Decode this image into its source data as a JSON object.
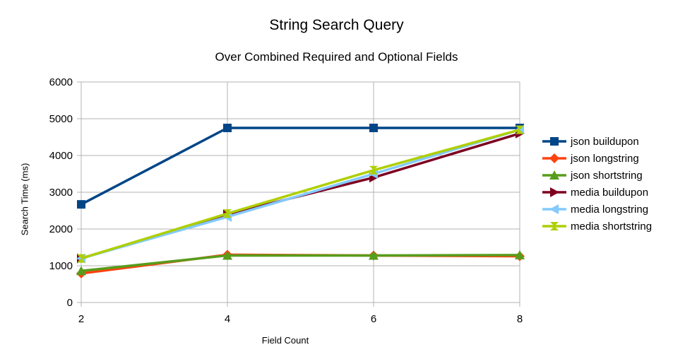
{
  "chart_data": {
    "type": "line",
    "title": "String Search Query",
    "subtitle": "Over Combined Required and Optional Fields",
    "xlabel": "Field Count",
    "ylabel": "Search Time (ms)",
    "x": [
      2,
      4,
      6,
      8
    ],
    "xlim": [
      2,
      8
    ],
    "ylim": [
      0,
      6000
    ],
    "yticks": [
      0,
      1000,
      2000,
      3000,
      4000,
      5000,
      6000
    ],
    "grid": true,
    "legend_position": "right",
    "series": [
      {
        "name": "json buildupon",
        "values": [
          2670,
          4750,
          4750,
          4750
        ],
        "color": "#004586",
        "marker": "square"
      },
      {
        "name": "json longstring",
        "values": [
          790,
          1300,
          1280,
          1260
        ],
        "color": "#ff420e",
        "marker": "diamond"
      },
      {
        "name": "json shortstring",
        "values": [
          860,
          1280,
          1280,
          1290
        ],
        "color": "#579d1c",
        "marker": "triangle-up"
      },
      {
        "name": "media buildupon",
        "values": [
          1200,
          2400,
          3400,
          4600
        ],
        "color": "#7e0021",
        "marker": "triangle-right"
      },
      {
        "name": "media longstring",
        "values": [
          1200,
          2330,
          3500,
          4700
        ],
        "color": "#83caff",
        "marker": "triangle-left"
      },
      {
        "name": "media shortstring",
        "values": [
          1200,
          2420,
          3600,
          4700
        ],
        "color": "#aecf00",
        "marker": "hourglass"
      }
    ]
  }
}
